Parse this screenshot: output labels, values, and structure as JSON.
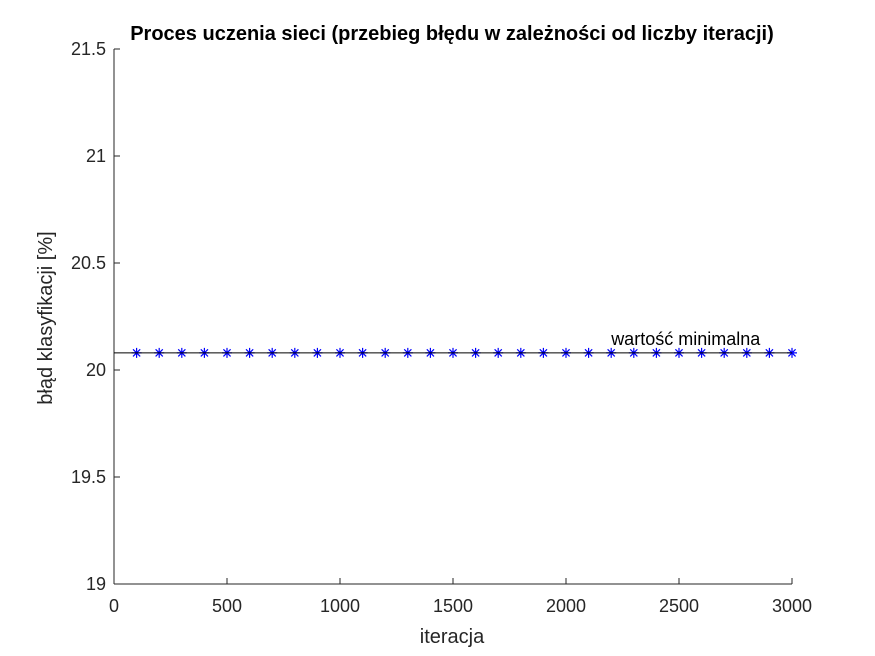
{
  "chart_data": {
    "type": "line",
    "title": "Proces uczenia sieci (przebieg błędu w zależności od liczby iteracji)",
    "xlabel": "iteracja",
    "ylabel": "błąd klasyfikacji [%]",
    "xlim": [
      0,
      3000
    ],
    "ylim": [
      19,
      21.5
    ],
    "xticks": [
      0,
      500,
      1000,
      1500,
      2000,
      2500,
      3000
    ],
    "xtick_labels": [
      "0",
      "500",
      "1000",
      "1500",
      "2000",
      "2500",
      "3000"
    ],
    "yticks": [
      19,
      19.5,
      20,
      20.5,
      21,
      21.5
    ],
    "ytick_labels": [
      "19",
      "19.5",
      "20",
      "20.5",
      "21",
      "21.5"
    ],
    "grid": false,
    "series": [
      {
        "marker": "asterisk",
        "color": "#0000ff",
        "x": [
          100,
          200,
          300,
          400,
          500,
          600,
          700,
          800,
          900,
          1000,
          1100,
          1200,
          1300,
          1400,
          1500,
          1600,
          1700,
          1800,
          1900,
          2000,
          2100,
          2200,
          2300,
          2400,
          2500,
          2600,
          2700,
          2800,
          2900,
          3000
        ],
        "y": [
          20.08,
          20.08,
          20.08,
          20.08,
          20.08,
          20.08,
          20.08,
          20.08,
          20.08,
          20.08,
          20.08,
          20.08,
          20.08,
          20.08,
          20.08,
          20.08,
          20.08,
          20.08,
          20.08,
          20.08,
          20.08,
          20.08,
          20.08,
          20.08,
          20.08,
          20.08,
          20.08,
          20.08,
          20.08,
          20.08
        ]
      }
    ],
    "reference_line": {
      "y": 20.08,
      "color": "#000000"
    },
    "annotations": [
      {
        "text": "wartość minimalna",
        "x": 2200,
        "y": 20.08
      }
    ]
  }
}
